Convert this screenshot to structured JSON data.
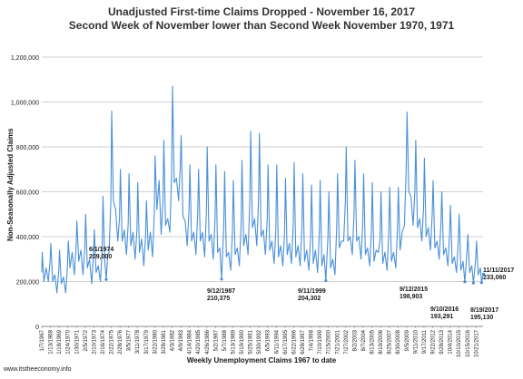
{
  "chart_data": {
    "type": "line",
    "title": "Unadjusted First-time Claims Dropped - November 16, 2017",
    "subtitle": "Second Week of November lower than Second Week November 1970, 1971",
    "ylabel": "Non-Seasonally Adjusted Claims",
    "xlabel": "Weekly Unemployment Claims 1967 to date",
    "ylim": [
      0,
      1200000
    ],
    "yticks": [
      "0",
      "200,000",
      "400,000",
      "600,000",
      "800,000",
      "1,000,000",
      "1,200,000"
    ],
    "xticks": [
      "1/7/1967",
      "1/13/1968",
      "1/18/1969",
      "1/24/1970",
      "1/30/1971",
      "2/5/1972",
      "2/10/1973",
      "2/16/1974",
      "2/22/1975",
      "2/28/1976",
      "3/5/1977",
      "3/11/1978",
      "3/17/1979",
      "3/22/1980",
      "3/28/1981",
      "4/3/1982",
      "4/9/1983",
      "4/14/1984",
      "4/20/1985",
      "4/26/1986",
      "5/2/1987",
      "5/7/1988",
      "5/13/1989",
      "5/19/1990",
      "5/25/1991",
      "5/30/1992",
      "6/5/1993",
      "6/11/1994",
      "6/17/1995",
      "6/22/1996",
      "6/28/1997",
      "7/4/1998",
      "7/10/1999",
      "7/15/2000",
      "7/21/2001",
      "7/27/2002",
      "8/2/2003",
      "8/7/2004",
      "8/13/2005",
      "8/19/2006",
      "8/25/2007",
      "8/30/2008",
      "9/5/2009",
      "9/11/2010",
      "9/17/2011",
      "9/22/2012",
      "9/28/2013",
      "10/4/2014",
      "10/10/2015",
      "10/15/2016",
      "10/21/2017"
    ],
    "grid": true,
    "line_color": "#4a90d9",
    "series": [
      {
        "values": [
          [
            1967.0,
            240000
          ],
          [
            1967.05,
            330000
          ],
          [
            1967.25,
            200000
          ],
          [
            1967.5,
            260000
          ],
          [
            1967.75,
            200000
          ],
          [
            1967.95,
            290000
          ],
          [
            1968.05,
            370000
          ],
          [
            1968.25,
            200000
          ],
          [
            1968.5,
            230000
          ],
          [
            1968.75,
            150000
          ],
          [
            1968.95,
            250000
          ],
          [
            1969.05,
            340000
          ],
          [
            1969.25,
            190000
          ],
          [
            1969.5,
            220000
          ],
          [
            1969.75,
            150000
          ],
          [
            1969.95,
            260000
          ],
          [
            1970.05,
            380000
          ],
          [
            1970.25,
            260000
          ],
          [
            1970.5,
            330000
          ],
          [
            1970.75,
            230000
          ],
          [
            1970.95,
            360000
          ],
          [
            1971.05,
            470000
          ],
          [
            1971.25,
            290000
          ],
          [
            1971.5,
            340000
          ],
          [
            1971.75,
            230000
          ],
          [
            1971.95,
            350000
          ],
          [
            1972.05,
            500000
          ],
          [
            1972.25,
            260000
          ],
          [
            1972.5,
            300000
          ],
          [
            1972.75,
            190000
          ],
          [
            1972.95,
            320000
          ],
          [
            1973.05,
            430000
          ],
          [
            1973.25,
            240000
          ],
          [
            1973.5,
            270000
          ],
          [
            1973.75,
            200000
          ],
          [
            1973.95,
            340000
          ],
          [
            1974.05,
            580000
          ],
          [
            1974.25,
            290000
          ],
          [
            1974.42,
            209000
          ],
          [
            1974.6,
            320000
          ],
          [
            1974.75,
            330000
          ],
          [
            1974.95,
            560000
          ],
          [
            1975.05,
            960000
          ],
          [
            1975.25,
            560000
          ],
          [
            1975.5,
            520000
          ],
          [
            1975.75,
            380000
          ],
          [
            1975.95,
            480000
          ],
          [
            1976.05,
            700000
          ],
          [
            1976.25,
            380000
          ],
          [
            1976.5,
            430000
          ],
          [
            1976.75,
            320000
          ],
          [
            1976.95,
            460000
          ],
          [
            1977.05,
            680000
          ],
          [
            1977.25,
            360000
          ],
          [
            1977.5,
            420000
          ],
          [
            1977.75,
            300000
          ],
          [
            1977.95,
            430000
          ],
          [
            1978.05,
            640000
          ],
          [
            1978.25,
            330000
          ],
          [
            1978.5,
            390000
          ],
          [
            1978.75,
            270000
          ],
          [
            1978.95,
            400000
          ],
          [
            1979.05,
            560000
          ],
          [
            1979.25,
            340000
          ],
          [
            1979.5,
            420000
          ],
          [
            1979.75,
            310000
          ],
          [
            1979.95,
            500000
          ],
          [
            1980.05,
            760000
          ],
          [
            1980.25,
            520000
          ],
          [
            1980.5,
            650000
          ],
          [
            1980.75,
            410000
          ],
          [
            1980.95,
            560000
          ],
          [
            1981.05,
            830000
          ],
          [
            1981.25,
            450000
          ],
          [
            1981.5,
            480000
          ],
          [
            1981.75,
            420000
          ],
          [
            1981.95,
            680000
          ],
          [
            1982.05,
            1070000
          ],
          [
            1982.25,
            640000
          ],
          [
            1982.5,
            660000
          ],
          [
            1982.75,
            560000
          ],
          [
            1982.95,
            720000
          ],
          [
            1983.05,
            850000
          ],
          [
            1983.25,
            490000
          ],
          [
            1983.5,
            470000
          ],
          [
            1983.75,
            360000
          ],
          [
            1983.95,
            520000
          ],
          [
            1984.05,
            720000
          ],
          [
            1984.25,
            380000
          ],
          [
            1984.5,
            420000
          ],
          [
            1984.75,
            320000
          ],
          [
            1984.95,
            500000
          ],
          [
            1985.05,
            700000
          ],
          [
            1985.25,
            380000
          ],
          [
            1985.5,
            420000
          ],
          [
            1985.75,
            310000
          ],
          [
            1985.95,
            510000
          ],
          [
            1986.05,
            800000
          ],
          [
            1986.25,
            380000
          ],
          [
            1986.5,
            410000
          ],
          [
            1986.75,
            300000
          ],
          [
            1986.95,
            490000
          ],
          [
            1987.05,
            720000
          ],
          [
            1987.25,
            330000
          ],
          [
            1987.5,
            350000
          ],
          [
            1987.7,
            210375
          ],
          [
            1987.95,
            440000
          ],
          [
            1988.05,
            690000
          ],
          [
            1988.25,
            310000
          ],
          [
            1988.5,
            330000
          ],
          [
            1988.75,
            250000
          ],
          [
            1988.95,
            420000
          ],
          [
            1989.05,
            650000
          ],
          [
            1989.25,
            320000
          ],
          [
            1989.5,
            350000
          ],
          [
            1989.75,
            270000
          ],
          [
            1989.95,
            460000
          ],
          [
            1990.05,
            740000
          ],
          [
            1990.25,
            360000
          ],
          [
            1990.5,
            410000
          ],
          [
            1990.75,
            320000
          ],
          [
            1990.95,
            560000
          ],
          [
            1991.05,
            870000
          ],
          [
            1991.25,
            440000
          ],
          [
            1991.5,
            480000
          ],
          [
            1991.75,
            360000
          ],
          [
            1991.95,
            560000
          ],
          [
            1992.05,
            860000
          ],
          [
            1992.25,
            400000
          ],
          [
            1992.5,
            430000
          ],
          [
            1992.75,
            320000
          ],
          [
            1992.95,
            480000
          ],
          [
            1993.05,
            720000
          ],
          [
            1993.25,
            340000
          ],
          [
            1993.5,
            380000
          ],
          [
            1993.75,
            280000
          ],
          [
            1993.95,
            430000
          ],
          [
            1994.05,
            720000
          ],
          [
            1994.25,
            310000
          ],
          [
            1994.5,
            360000
          ],
          [
            1994.75,
            270000
          ],
          [
            1994.95,
            420000
          ],
          [
            1995.05,
            660000
          ],
          [
            1995.25,
            320000
          ],
          [
            1995.5,
            370000
          ],
          [
            1995.75,
            280000
          ],
          [
            1995.95,
            460000
          ],
          [
            1996.05,
            730000
          ],
          [
            1996.25,
            310000
          ],
          [
            1996.5,
            360000
          ],
          [
            1996.75,
            270000
          ],
          [
            1996.95,
            440000
          ],
          [
            1997.05,
            680000
          ],
          [
            1997.25,
            290000
          ],
          [
            1997.5,
            340000
          ],
          [
            1997.75,
            250000
          ],
          [
            1997.95,
            400000
          ],
          [
            1998.05,
            630000
          ],
          [
            1998.25,
            280000
          ],
          [
            1998.5,
            340000
          ],
          [
            1998.75,
            240000
          ],
          [
            1998.95,
            420000
          ],
          [
            1999.05,
            650000
          ],
          [
            1999.25,
            270000
          ],
          [
            1999.5,
            320000
          ],
          [
            1999.7,
            204302
          ],
          [
            1999.95,
            400000
          ],
          [
            2000.05,
            600000
          ],
          [
            2000.25,
            260000
          ],
          [
            2000.5,
            300000
          ],
          [
            2000.75,
            230000
          ],
          [
            2000.95,
            440000
          ],
          [
            2001.05,
            680000
          ],
          [
            2001.25,
            350000
          ],
          [
            2001.5,
            380000
          ],
          [
            2001.75,
            380000
          ],
          [
            2001.95,
            560000
          ],
          [
            2002.05,
            800000
          ],
          [
            2002.25,
            380000
          ],
          [
            2002.5,
            400000
          ],
          [
            2002.75,
            320000
          ],
          [
            2002.95,
            500000
          ],
          [
            2003.05,
            740000
          ],
          [
            2003.25,
            380000
          ],
          [
            2003.5,
            400000
          ],
          [
            2003.75,
            300000
          ],
          [
            2003.95,
            460000
          ],
          [
            2004.05,
            680000
          ],
          [
            2004.25,
            320000
          ],
          [
            2004.5,
            350000
          ],
          [
            2004.75,
            270000
          ],
          [
            2004.95,
            430000
          ],
          [
            2005.05,
            640000
          ],
          [
            2005.25,
            290000
          ],
          [
            2005.5,
            340000
          ],
          [
            2005.75,
            330000
          ],
          [
            2005.95,
            390000
          ],
          [
            2006.05,
            600000
          ],
          [
            2006.25,
            280000
          ],
          [
            2006.5,
            330000
          ],
          [
            2006.75,
            250000
          ],
          [
            2006.95,
            420000
          ],
          [
            2007.05,
            620000
          ],
          [
            2007.25,
            290000
          ],
          [
            2007.5,
            330000
          ],
          [
            2007.75,
            260000
          ],
          [
            2007.95,
            440000
          ],
          [
            2008.05,
            620000
          ],
          [
            2008.25,
            340000
          ],
          [
            2008.5,
            420000
          ],
          [
            2008.75,
            450000
          ],
          [
            2008.95,
            700000
          ],
          [
            2009.05,
            955000
          ],
          [
            2009.25,
            600000
          ],
          [
            2009.5,
            580000
          ],
          [
            2009.75,
            450000
          ],
          [
            2009.95,
            600000
          ],
          [
            2010.05,
            830000
          ],
          [
            2010.25,
            440000
          ],
          [
            2010.5,
            480000
          ],
          [
            2010.75,
            380000
          ],
          [
            2010.95,
            530000
          ],
          [
            2011.05,
            750000
          ],
          [
            2011.25,
            400000
          ],
          [
            2011.5,
            440000
          ],
          [
            2011.75,
            340000
          ],
          [
            2011.95,
            500000
          ],
          [
            2012.05,
            650000
          ],
          [
            2012.25,
            350000
          ],
          [
            2012.5,
            380000
          ],
          [
            2012.75,
            300000
          ],
          [
            2012.95,
            460000
          ],
          [
            2013.05,
            600000
          ],
          [
            2013.25,
            320000
          ],
          [
            2013.5,
            350000
          ],
          [
            2013.75,
            270000
          ],
          [
            2013.95,
            420000
          ],
          [
            2014.05,
            540000
          ],
          [
            2014.25,
            280000
          ],
          [
            2014.5,
            310000
          ],
          [
            2014.75,
            240000
          ],
          [
            2014.95,
            380000
          ],
          [
            2015.05,
            500000
          ],
          [
            2015.25,
            250000
          ],
          [
            2015.5,
            290000
          ],
          [
            2015.7,
            198903
          ],
          [
            2015.95,
            330000
          ],
          [
            2016.05,
            410000
          ],
          [
            2016.25,
            240000
          ],
          [
            2016.5,
            270000
          ],
          [
            2016.69,
            193291
          ],
          [
            2016.95,
            300000
          ],
          [
            2017.05,
            380000
          ],
          [
            2017.25,
            230000
          ],
          [
            2017.5,
            260000
          ],
          [
            2017.63,
            195130
          ],
          [
            2017.8,
            230000
          ],
          [
            2017.86,
            233060
          ]
        ]
      }
    ],
    "annotations": [
      {
        "lines": [
          "6/1/1974",
          "209,000"
        ],
        "x": 1974.42,
        "y": 209000
      },
      {
        "lines": [
          "9/12/1987",
          "210,375"
        ],
        "x": 1987.7,
        "y": 210375
      },
      {
        "lines": [
          "9/11/1999",
          "204,302"
        ],
        "x": 1999.7,
        "y": 204302
      },
      {
        "lines": [
          "9/12/2015",
          "198,903"
        ],
        "x": 2015.7,
        "y": 198903
      },
      {
        "lines": [
          "9/10/2016",
          "193,291"
        ],
        "x": 2016.69,
        "y": 193291
      },
      {
        "lines": [
          "8/19/2017",
          "195,130"
        ],
        "x": 2017.63,
        "y": 195130
      },
      {
        "lines": [
          "11/11/2017",
          "233,060"
        ],
        "x": 2017.86,
        "y": 233060
      }
    ]
  },
  "source": "www.itstheeconomy.info"
}
